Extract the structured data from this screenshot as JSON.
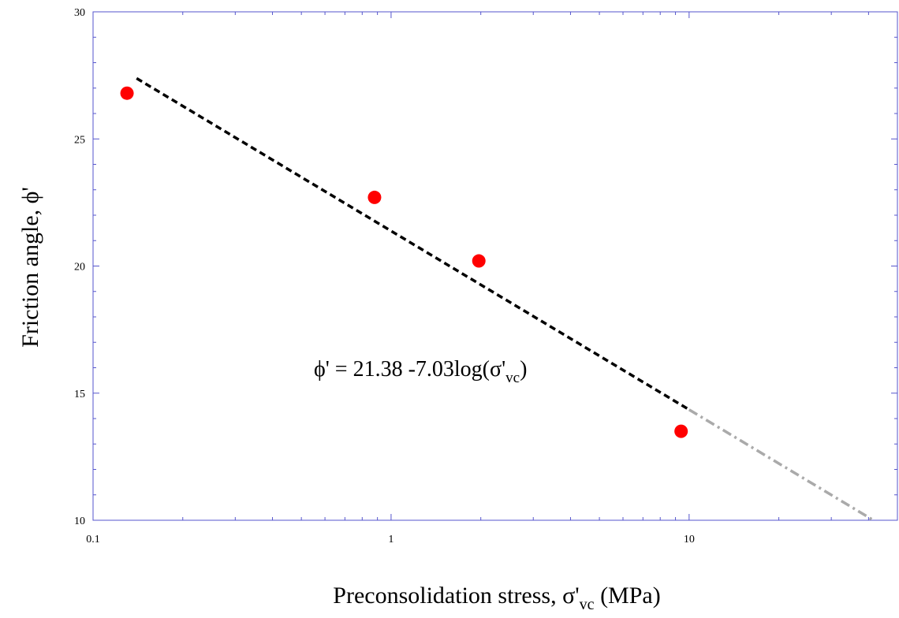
{
  "chart_data": {
    "type": "scatter",
    "x_scale": "log",
    "xlim": [
      0.1,
      50
    ],
    "ylim": [
      10,
      30
    ],
    "x_ticks": [
      "0.1",
      "1",
      "10"
    ],
    "y_ticks": [
      "10",
      "15",
      "20",
      "25",
      "30"
    ],
    "xlabel": {
      "main": "Preconsolidation stress, σ'",
      "sub": "vc",
      "tail": " (MPa)"
    },
    "ylabel": "Friction angle, ϕ'",
    "annotation": {
      "main": "ϕ' = 21.38 -7.03log(σ'",
      "sub": "vc",
      "tail": ")"
    },
    "grid": false,
    "series": [
      {
        "type": "scatter",
        "color": "#ff0000",
        "points": [
          {
            "x": 0.13,
            "y": 26.8
          },
          {
            "x": 0.88,
            "y": 22.7
          },
          {
            "x": 1.97,
            "y": 20.2
          },
          {
            "x": 9.4,
            "y": 13.5
          }
        ]
      }
    ],
    "fit_lines": [
      {
        "style": "dashed",
        "color": "#000000",
        "x_range": [
          0.14,
          10
        ]
      },
      {
        "style": "dash-dot",
        "color": "#aaaaaa",
        "x_range": [
          10,
          41
        ]
      }
    ],
    "fit": {
      "intercept": 21.38,
      "slope": -7.03
    }
  }
}
